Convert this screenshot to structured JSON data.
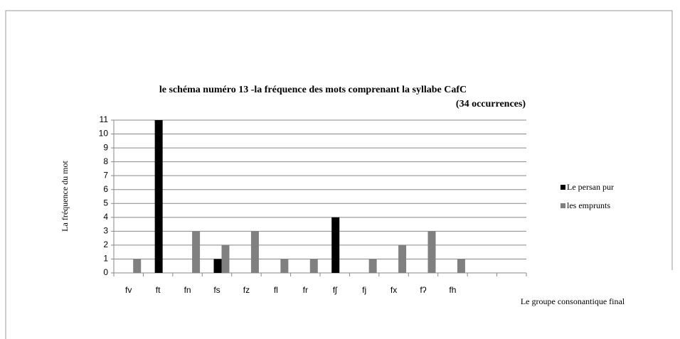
{
  "chart_data": {
    "type": "bar",
    "title": "le schéma  numéro 13 -la fréquence des mots comprenant la syllabe CafC",
    "subtitle": "(34  occurrences)",
    "y_label": "La fréquence du mot",
    "x_label": "Le groupe consonantique final",
    "categories": [
      "fv",
      "ft",
      "fn",
      "fs",
      "fz",
      "fl",
      "fr",
      "fʃ",
      "fj",
      "fx",
      "fʔ",
      "fh",
      null,
      null
    ],
    "series": [
      {
        "name": "Le persan pur",
        "color": "#000000",
        "values": [
          0,
          11,
          0,
          1,
          0,
          0,
          0,
          4,
          0,
          0,
          0,
          0,
          null,
          null
        ]
      },
      {
        "name": "les emprunts",
        "color": "#808080",
        "values": [
          1,
          0,
          3,
          2,
          3,
          1,
          1,
          0,
          1,
          2,
          3,
          1,
          null,
          null
        ]
      }
    ],
    "ylim": [
      0,
      11
    ],
    "yticks": [
      0,
      1,
      2,
      3,
      4,
      5,
      6,
      7,
      8,
      9,
      10,
      11
    ],
    "grid": true,
    "legend": "right"
  }
}
